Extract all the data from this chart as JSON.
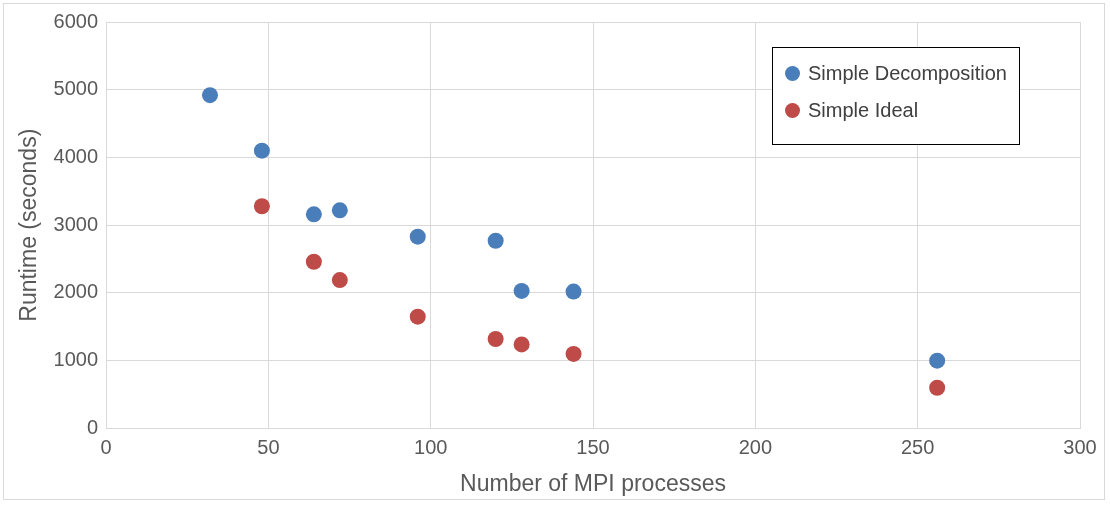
{
  "chart_data": {
    "type": "scatter",
    "xlabel": "Number of MPI processes",
    "ylabel": "Runtime (seconds)",
    "x": [
      32,
      48,
      64,
      72,
      96,
      120,
      128,
      144,
      256
    ],
    "series": [
      {
        "name": "Simple Decomposition",
        "color": "#4a7ebb",
        "values": [
          4920,
          4100,
          3160,
          3220,
          2830,
          2770,
          2030,
          2020,
          1000
        ]
      },
      {
        "name": "Simple Ideal",
        "color": "#be4b48",
        "values": [
          null,
          3280,
          2460,
          2190,
          1650,
          1320,
          1240,
          1100,
          600
        ]
      }
    ],
    "xlim": [
      0,
      300
    ],
    "xticks": [
      0,
      50,
      100,
      150,
      200,
      250,
      300
    ],
    "ylim": [
      0,
      6000
    ],
    "yticks": [
      0,
      1000,
      2000,
      3000,
      4000,
      5000,
      6000
    ],
    "grid": true,
    "legend": "top right",
    "marker": "circle"
  }
}
